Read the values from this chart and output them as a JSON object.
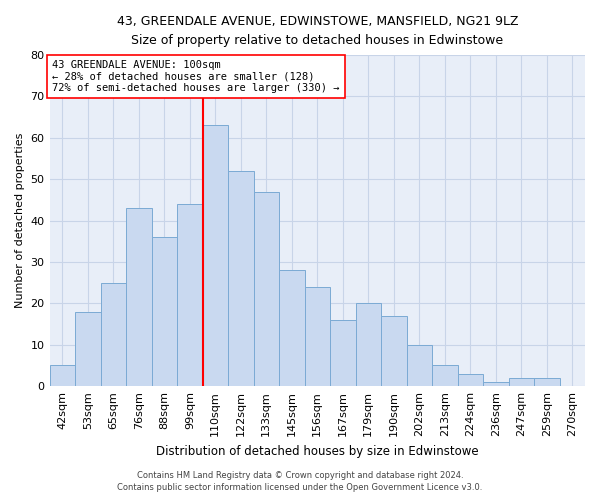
{
  "title1": "43, GREENDALE AVENUE, EDWINSTOWE, MANSFIELD, NG21 9LZ",
  "title2": "Size of property relative to detached houses in Edwinstowe",
  "xlabel": "Distribution of detached houses by size in Edwinstowe",
  "ylabel": "Number of detached properties",
  "bar_labels": [
    "42sqm",
    "53sqm",
    "65sqm",
    "76sqm",
    "88sqm",
    "99sqm",
    "110sqm",
    "122sqm",
    "133sqm",
    "145sqm",
    "156sqm",
    "167sqm",
    "179sqm",
    "190sqm",
    "202sqm",
    "213sqm",
    "224sqm",
    "236sqm",
    "247sqm",
    "259sqm",
    "270sqm"
  ],
  "bar_values": [
    5,
    18,
    25,
    43,
    36,
    44,
    63,
    52,
    47,
    28,
    24,
    16,
    20,
    17,
    10,
    5,
    3,
    1,
    2,
    2,
    0
  ],
  "bar_color": "#c9d9f0",
  "bar_edgecolor": "#7baad4",
  "annotation_line1": "43 GREENDALE AVENUE: 100sqm",
  "annotation_line2": "← 28% of detached houses are smaller (128)",
  "annotation_line3": "72% of semi-detached houses are larger (330) →",
  "footer1": "Contains HM Land Registry data © Crown copyright and database right 2024.",
  "footer2": "Contains public sector information licensed under the Open Government Licence v3.0.",
  "ylim": [
    0,
    80
  ],
  "yticks": [
    0,
    10,
    20,
    30,
    40,
    50,
    60,
    70,
    80
  ],
  "bg_color": "#ffffff",
  "plot_bg_color": "#e8eef8",
  "grid_color": "#c8d4e8"
}
